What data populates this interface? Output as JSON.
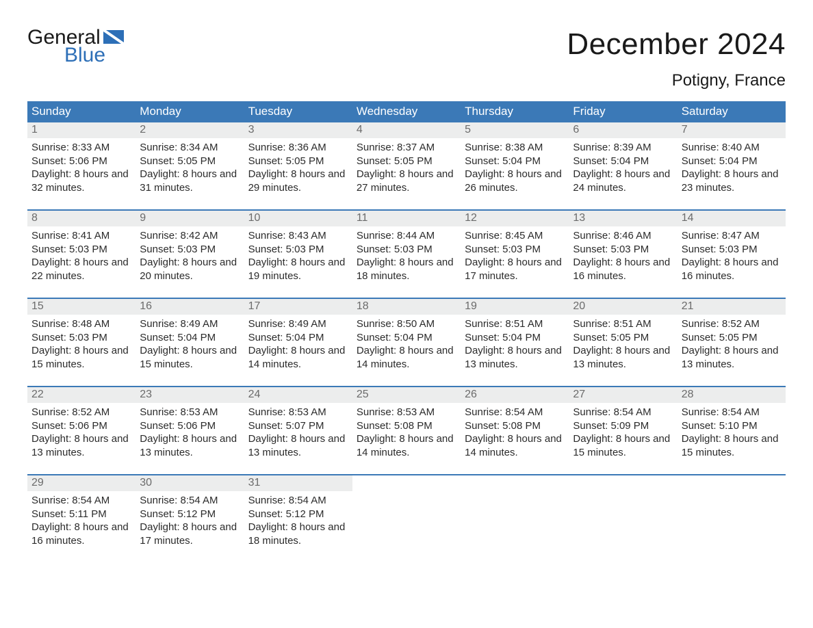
{
  "logo": {
    "word1": "General",
    "word2": "Blue"
  },
  "title": "December 2024",
  "location": "Potigny, France",
  "colors": {
    "header_bg": "#3b79b7",
    "header_text": "#ffffff",
    "week_border": "#3b79b7",
    "daynum_bg": "#eceded",
    "daynum_text": "#6b6b6b",
    "body_text": "#2b2b2b",
    "logo_blue": "#2d6fb7"
  },
  "day_labels": [
    "Sunday",
    "Monday",
    "Tuesday",
    "Wednesday",
    "Thursday",
    "Friday",
    "Saturday"
  ],
  "weeks": [
    [
      {
        "n": "1",
        "sunrise": "8:33 AM",
        "sunset": "5:06 PM",
        "daylight": "8 hours and 32 minutes."
      },
      {
        "n": "2",
        "sunrise": "8:34 AM",
        "sunset": "5:05 PM",
        "daylight": "8 hours and 31 minutes."
      },
      {
        "n": "3",
        "sunrise": "8:36 AM",
        "sunset": "5:05 PM",
        "daylight": "8 hours and 29 minutes."
      },
      {
        "n": "4",
        "sunrise": "8:37 AM",
        "sunset": "5:05 PM",
        "daylight": "8 hours and 27 minutes."
      },
      {
        "n": "5",
        "sunrise": "8:38 AM",
        "sunset": "5:04 PM",
        "daylight": "8 hours and 26 minutes."
      },
      {
        "n": "6",
        "sunrise": "8:39 AM",
        "sunset": "5:04 PM",
        "daylight": "8 hours and 24 minutes."
      },
      {
        "n": "7",
        "sunrise": "8:40 AM",
        "sunset": "5:04 PM",
        "daylight": "8 hours and 23 minutes."
      }
    ],
    [
      {
        "n": "8",
        "sunrise": "8:41 AM",
        "sunset": "5:03 PM",
        "daylight": "8 hours and 22 minutes."
      },
      {
        "n": "9",
        "sunrise": "8:42 AM",
        "sunset": "5:03 PM",
        "daylight": "8 hours and 20 minutes."
      },
      {
        "n": "10",
        "sunrise": "8:43 AM",
        "sunset": "5:03 PM",
        "daylight": "8 hours and 19 minutes."
      },
      {
        "n": "11",
        "sunrise": "8:44 AM",
        "sunset": "5:03 PM",
        "daylight": "8 hours and 18 minutes."
      },
      {
        "n": "12",
        "sunrise": "8:45 AM",
        "sunset": "5:03 PM",
        "daylight": "8 hours and 17 minutes."
      },
      {
        "n": "13",
        "sunrise": "8:46 AM",
        "sunset": "5:03 PM",
        "daylight": "8 hours and 16 minutes."
      },
      {
        "n": "14",
        "sunrise": "8:47 AM",
        "sunset": "5:03 PM",
        "daylight": "8 hours and 16 minutes."
      }
    ],
    [
      {
        "n": "15",
        "sunrise": "8:48 AM",
        "sunset": "5:03 PM",
        "daylight": "8 hours and 15 minutes."
      },
      {
        "n": "16",
        "sunrise": "8:49 AM",
        "sunset": "5:04 PM",
        "daylight": "8 hours and 15 minutes."
      },
      {
        "n": "17",
        "sunrise": "8:49 AM",
        "sunset": "5:04 PM",
        "daylight": "8 hours and 14 minutes."
      },
      {
        "n": "18",
        "sunrise": "8:50 AM",
        "sunset": "5:04 PM",
        "daylight": "8 hours and 14 minutes."
      },
      {
        "n": "19",
        "sunrise": "8:51 AM",
        "sunset": "5:04 PM",
        "daylight": "8 hours and 13 minutes."
      },
      {
        "n": "20",
        "sunrise": "8:51 AM",
        "sunset": "5:05 PM",
        "daylight": "8 hours and 13 minutes."
      },
      {
        "n": "21",
        "sunrise": "8:52 AM",
        "sunset": "5:05 PM",
        "daylight": "8 hours and 13 minutes."
      }
    ],
    [
      {
        "n": "22",
        "sunrise": "8:52 AM",
        "sunset": "5:06 PM",
        "daylight": "8 hours and 13 minutes."
      },
      {
        "n": "23",
        "sunrise": "8:53 AM",
        "sunset": "5:06 PM",
        "daylight": "8 hours and 13 minutes."
      },
      {
        "n": "24",
        "sunrise": "8:53 AM",
        "sunset": "5:07 PM",
        "daylight": "8 hours and 13 minutes."
      },
      {
        "n": "25",
        "sunrise": "8:53 AM",
        "sunset": "5:08 PM",
        "daylight": "8 hours and 14 minutes."
      },
      {
        "n": "26",
        "sunrise": "8:54 AM",
        "sunset": "5:08 PM",
        "daylight": "8 hours and 14 minutes."
      },
      {
        "n": "27",
        "sunrise": "8:54 AM",
        "sunset": "5:09 PM",
        "daylight": "8 hours and 15 minutes."
      },
      {
        "n": "28",
        "sunrise": "8:54 AM",
        "sunset": "5:10 PM",
        "daylight": "8 hours and 15 minutes."
      }
    ],
    [
      {
        "n": "29",
        "sunrise": "8:54 AM",
        "sunset": "5:11 PM",
        "daylight": "8 hours and 16 minutes."
      },
      {
        "n": "30",
        "sunrise": "8:54 AM",
        "sunset": "5:12 PM",
        "daylight": "8 hours and 17 minutes."
      },
      {
        "n": "31",
        "sunrise": "8:54 AM",
        "sunset": "5:12 PM",
        "daylight": "8 hours and 18 minutes."
      },
      null,
      null,
      null,
      null
    ]
  ],
  "labels": {
    "sunrise": "Sunrise:",
    "sunset": "Sunset:",
    "daylight": "Daylight:"
  }
}
